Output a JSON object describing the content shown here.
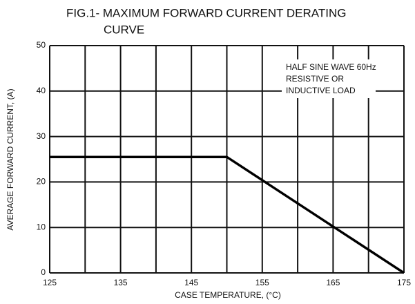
{
  "chart_data": {
    "type": "line",
    "title": [
      "FIG.1- MAXIMUM FORWARD CURRENT DERATING",
      "CURVE"
    ],
    "x_label": "CASE TEMPERATURE, (°C)",
    "y_label": "AVERAGE FORWARD CURRENT, (A)",
    "annotation": [
      "HALF SINE WAVE 60Hz",
      "RESISTIVE OR",
      "INDUCTIVE LOAD"
    ],
    "x": [
      125,
      150,
      175
    ],
    "series": [
      {
        "color": "#000000",
        "values": [
          25.5,
          25.5,
          0
        ]
      }
    ],
    "xlim": [
      125,
      175
    ],
    "xticks": [
      125,
      135,
      145,
      155,
      165,
      175
    ],
    "xminor_ticks": [
      130,
      140,
      150,
      160,
      170
    ],
    "ylim": [
      0,
      50
    ],
    "yticks": [
      0,
      10,
      20,
      30,
      40,
      50
    ],
    "grid": true
  }
}
